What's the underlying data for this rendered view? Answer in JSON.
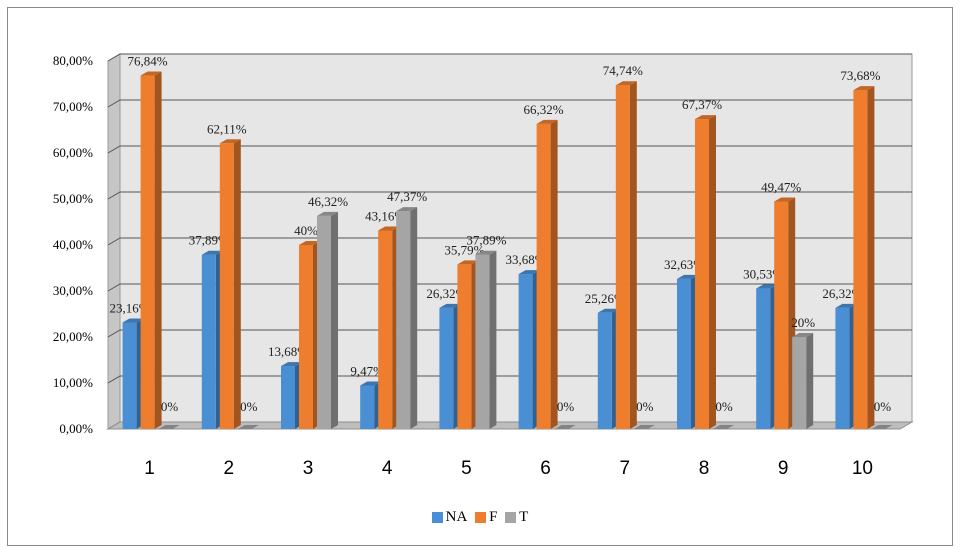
{
  "chart_data": {
    "type": "bar",
    "categories": [
      "1",
      "2",
      "3",
      "4",
      "5",
      "6",
      "7",
      "8",
      "9",
      "10"
    ],
    "series": [
      {
        "name": "NA",
        "color": "#4a8fd4",
        "values": [
          23.16,
          37.89,
          13.68,
          9.47,
          26.32,
          33.68,
          25.26,
          32.63,
          30.53,
          26.32
        ],
        "labels": [
          "23,16%",
          "37,89%",
          "13,68%",
          "9,47%",
          "26,32%",
          "33,68%",
          "25,26%",
          "32,63%",
          "30,53%",
          "26,32%"
        ]
      },
      {
        "name": "F",
        "color": "#ee7d2e",
        "values": [
          76.84,
          62.11,
          40,
          43.16,
          35.79,
          66.32,
          74.74,
          67.37,
          49.47,
          73.68
        ],
        "labels": [
          "76,84%",
          "62,11%",
          "40%",
          "43,16%",
          "35,79%",
          "66,32%",
          "74,74%",
          "67,37%",
          "49,47%",
          "73,68%"
        ]
      },
      {
        "name": "T",
        "color": "#a5a5a5",
        "values": [
          0,
          0,
          46.32,
          47.37,
          37.89,
          0,
          0,
          0,
          20,
          0
        ],
        "labels": [
          "0%",
          "0%",
          "46,32%",
          "47,37%",
          "37,89%",
          "0%",
          "0%",
          "0%",
          "20%",
          "0%"
        ]
      }
    ],
    "y_ticks": [
      "0,00%",
      "10,00%",
      "20,00%",
      "30,00%",
      "40,00%",
      "50,00%",
      "60,00%",
      "70,00%",
      "80,00%"
    ],
    "ylim": [
      0,
      80
    ],
    "grid": true,
    "legend_position": "bottom",
    "style": "3d-clustered-bar"
  }
}
